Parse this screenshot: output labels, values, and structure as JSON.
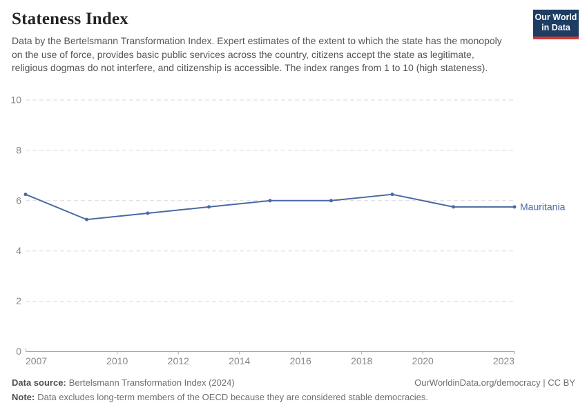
{
  "header": {
    "title": "Stateness Index",
    "subtitle": "Data by the Bertelsmann Transformation Index. Expert estimates of the extent to which the state has the monopoly on the use of force, provides basic public services across the country, citizens accept the state as legitimate, religious dogmas do not interfere, and citizenship is accessible. The index ranges from 1 to 10 (high stateness).",
    "logo": {
      "line1": "Our World",
      "line2": "in Data",
      "bg_color": "#1d3d63",
      "accent_color": "#d73732"
    }
  },
  "chart_data": {
    "type": "line",
    "title": "Stateness Index",
    "x": [
      2007,
      2009,
      2011,
      2013,
      2015,
      2017,
      2019,
      2021,
      2023
    ],
    "series": [
      {
        "name": "Mauritania",
        "color": "#4a69a2",
        "values": [
          6.25,
          5.25,
          5.5,
          5.75,
          6,
          6,
          6.25,
          5.75,
          5.75
        ]
      }
    ],
    "xlim": [
      2007,
      2023
    ],
    "ylim": [
      0,
      10
    ],
    "x_ticks": [
      2007,
      2010,
      2012,
      2014,
      2016,
      2018,
      2020,
      2023
    ],
    "y_ticks": [
      0,
      2,
      4,
      6,
      8,
      10
    ],
    "grid": "horizontal-dashed",
    "legend_position": "end-of-line",
    "entity_label": "Mauritania"
  },
  "footer": {
    "source_label": "Data source:",
    "source_text": "Bertelsmann Transformation Index (2024)",
    "rights": "OurWorldinData.org/democracy | CC BY",
    "note_label": "Note:",
    "note_text": "Data excludes long-term members of the OECD because they are considered stable democracies."
  }
}
